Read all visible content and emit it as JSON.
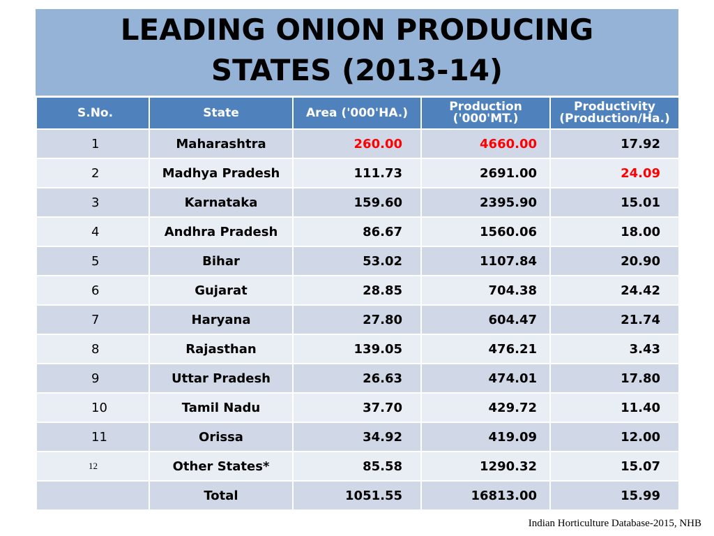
{
  "title": {
    "line1": "LEADING  ONION  PRODUCING",
    "line2": "STATES  (2013-14)"
  },
  "table": {
    "headers": {
      "sno": "S.No.",
      "state": "State",
      "area": "Area ('000'HA.)",
      "production_line1": "Production",
      "production_line2": "('000'MT.)",
      "productivity_line1": "Productivity",
      "productivity_line2": "(Production/Ha.)"
    },
    "rows": [
      {
        "sno": "1",
        "state": "Maharashtra",
        "area": "260.00",
        "production": "4660.00",
        "productivity": "17.92"
      },
      {
        "sno": "2",
        "state": "Madhya Pradesh",
        "area": "111.73",
        "production": "2691.00",
        "productivity": "24.09"
      },
      {
        "sno": "3",
        "state": "Karnataka",
        "area": "159.60",
        "production": "2395.90",
        "productivity": "15.01"
      },
      {
        "sno": "4",
        "state": "Andhra Pradesh",
        "area": "86.67",
        "production": "1560.06",
        "productivity": "18.00"
      },
      {
        "sno": "5",
        "state": "Bihar",
        "area": "53.02",
        "production": "1107.84",
        "productivity": "20.90"
      },
      {
        "sno": "6",
        "state": "Gujarat",
        "area": "28.85",
        "production": "704.38",
        "productivity": "24.42"
      },
      {
        "sno": "7",
        "state": "Haryana",
        "area": "27.80",
        "production": "604.47",
        "productivity": "21.74"
      },
      {
        "sno": "8",
        "state": "Rajasthan",
        "area": "139.05",
        "production": "476.21",
        "productivity": "3.43"
      },
      {
        "sno": "9",
        "state": "Uttar Pradesh",
        "area": "26.63",
        "production": "474.01",
        "productivity": "17.80"
      },
      {
        "sno": "10",
        "state": "Tamil Nadu",
        "area": "37.70",
        "production": "429.72",
        "productivity": "11.40"
      },
      {
        "sno": "11",
        "state": "Orissa",
        "area": "34.92",
        "production": "419.09",
        "productivity": "12.00"
      },
      {
        "sno": "12",
        "state": "Other States*",
        "area": "85.58",
        "production": "1290.32",
        "productivity": "15.07"
      }
    ],
    "total": {
      "label": "Total",
      "area": "1051.55",
      "production": "16813.00",
      "productivity": "15.99"
    }
  },
  "highlight_color": "#ff0000",
  "source": "Indian Horticulture Database-2015, NHB"
}
